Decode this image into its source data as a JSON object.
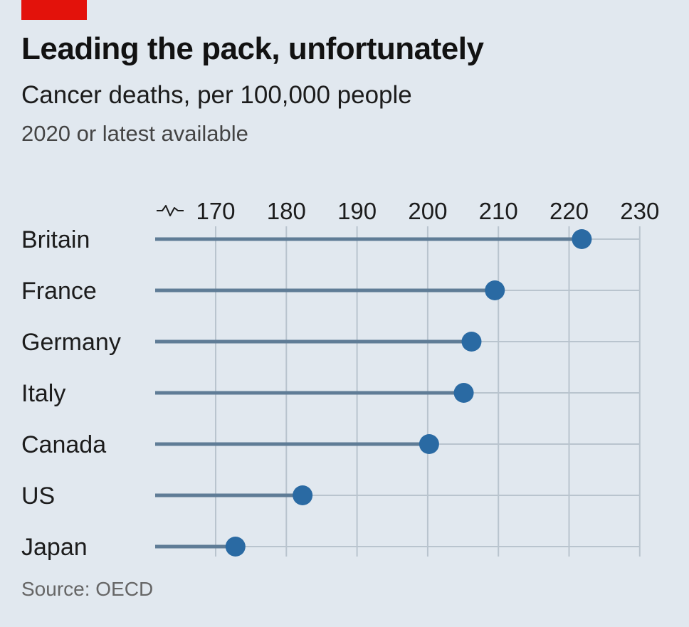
{
  "header": {
    "title": "Leading the pack, unfortunately",
    "subtitle": "Cancer deaths, per 100,000 people",
    "note": "2020 or latest available"
  },
  "footer": {
    "source": "Source: OECD"
  },
  "colors": {
    "accent": "#e3120b",
    "dot": "#2a6aa3",
    "stem": "#5f7c96",
    "grid": "#b9c4ce",
    "background": "#e1e8ef"
  },
  "chart_data": {
    "type": "dot",
    "title": "Leading the pack, unfortunately",
    "subtitle": "Cancer deaths, per 100,000 people",
    "note": "2020 or latest available",
    "axis_break": true,
    "xlim": [
      170,
      230
    ],
    "xticks": [
      170,
      180,
      190,
      200,
      210,
      220,
      230
    ],
    "xtick_labels": [
      "170",
      "180",
      "190",
      "200",
      "210",
      "220",
      "230"
    ],
    "categories": [
      "Britain",
      "France",
      "Germany",
      "Italy",
      "Canada",
      "US",
      "Japan"
    ],
    "values": [
      221.8,
      209.5,
      206.2,
      205.1,
      200.2,
      182.3,
      172.8
    ],
    "grid": true,
    "source": "Source: OECD"
  }
}
